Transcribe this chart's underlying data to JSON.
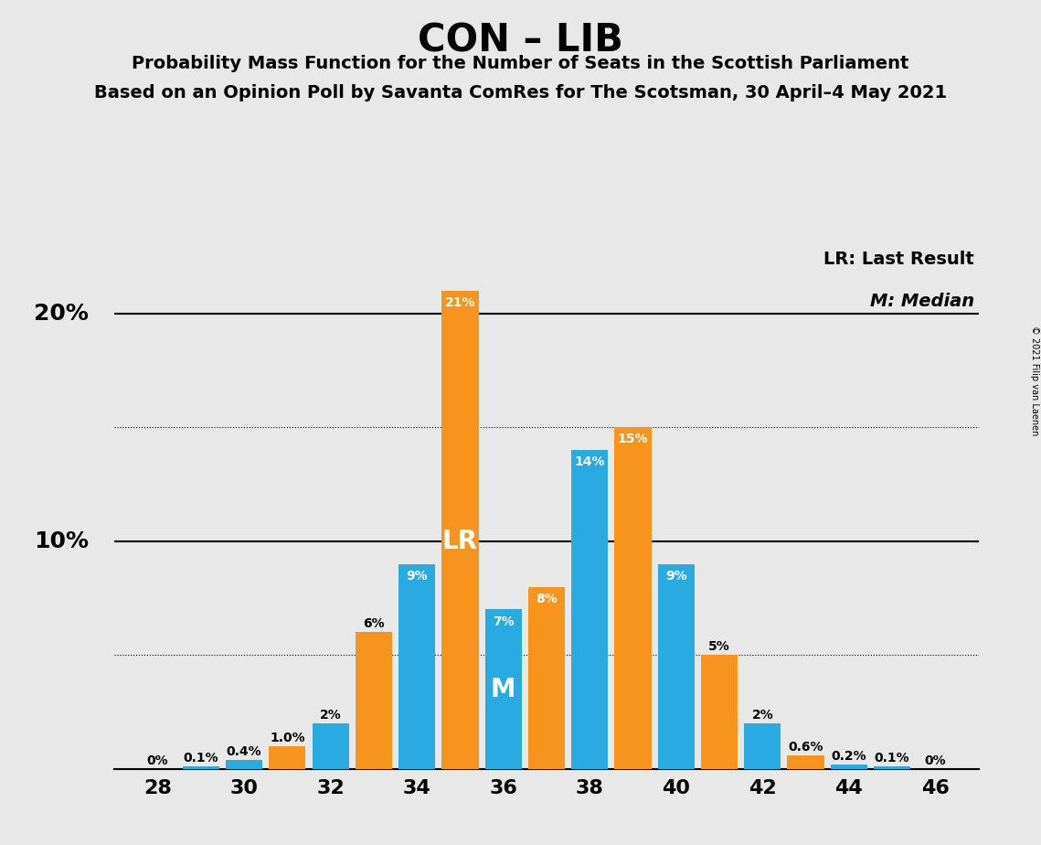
{
  "title": "CON – LIB",
  "subtitle1": "Probability Mass Function for the Number of Seats in the Scottish Parliament",
  "subtitle2": "Based on an Opinion Poll by Savanta ComRes for The Scotsman, 30 April–4 May 2021",
  "copyright": "© 2021 Filip van Laenen",
  "legend1": "LR: Last Result",
  "legend2": "M: Median",
  "lr_label": "LR",
  "m_label": "M",
  "background_color": "#e8e8e8",
  "blue_color": "#29ABE2",
  "orange_color": "#F7941D",
  "seats": [
    28,
    29,
    30,
    31,
    32,
    33,
    34,
    35,
    36,
    37,
    38,
    39,
    40,
    41,
    42,
    43,
    44,
    45,
    46
  ],
  "blue_values": [
    0.0,
    0.1,
    0.4,
    0.0,
    2.0,
    0.0,
    9.0,
    0.0,
    7.0,
    0.0,
    14.0,
    0.0,
    9.0,
    0.0,
    2.0,
    0.0,
    0.2,
    0.1,
    0.0
  ],
  "orange_values": [
    0.0,
    0.0,
    0.0,
    1.0,
    0.0,
    6.0,
    0.0,
    21.0,
    0.0,
    8.0,
    0.0,
    15.0,
    0.0,
    5.0,
    0.0,
    0.6,
    0.0,
    0.0,
    0.0
  ],
  "blue_labels": [
    "0%",
    "0.1%",
    "0.4%",
    null,
    "2%",
    null,
    "9%",
    null,
    "7%",
    null,
    "14%",
    null,
    "9%",
    null,
    "2%",
    null,
    "0.2%",
    "0.1%",
    "0%"
  ],
  "orange_labels": [
    null,
    null,
    null,
    "1.0%",
    null,
    "6%",
    null,
    "21%",
    null,
    "8%",
    null,
    "15%",
    null,
    "5%",
    null,
    "0.6%",
    null,
    null,
    null
  ],
  "lr_seat": 35,
  "m_seat": 36,
  "ylim": [
    0,
    23
  ],
  "solid_lines": [
    10.0,
    20.0
  ],
  "dotted_lines": [
    5.0,
    15.0
  ],
  "xtick_positions": [
    28,
    30,
    32,
    34,
    36,
    38,
    40,
    42,
    44,
    46
  ],
  "bar_width": 0.85,
  "ylabel_10": "10%",
  "ylabel_20": "20%"
}
